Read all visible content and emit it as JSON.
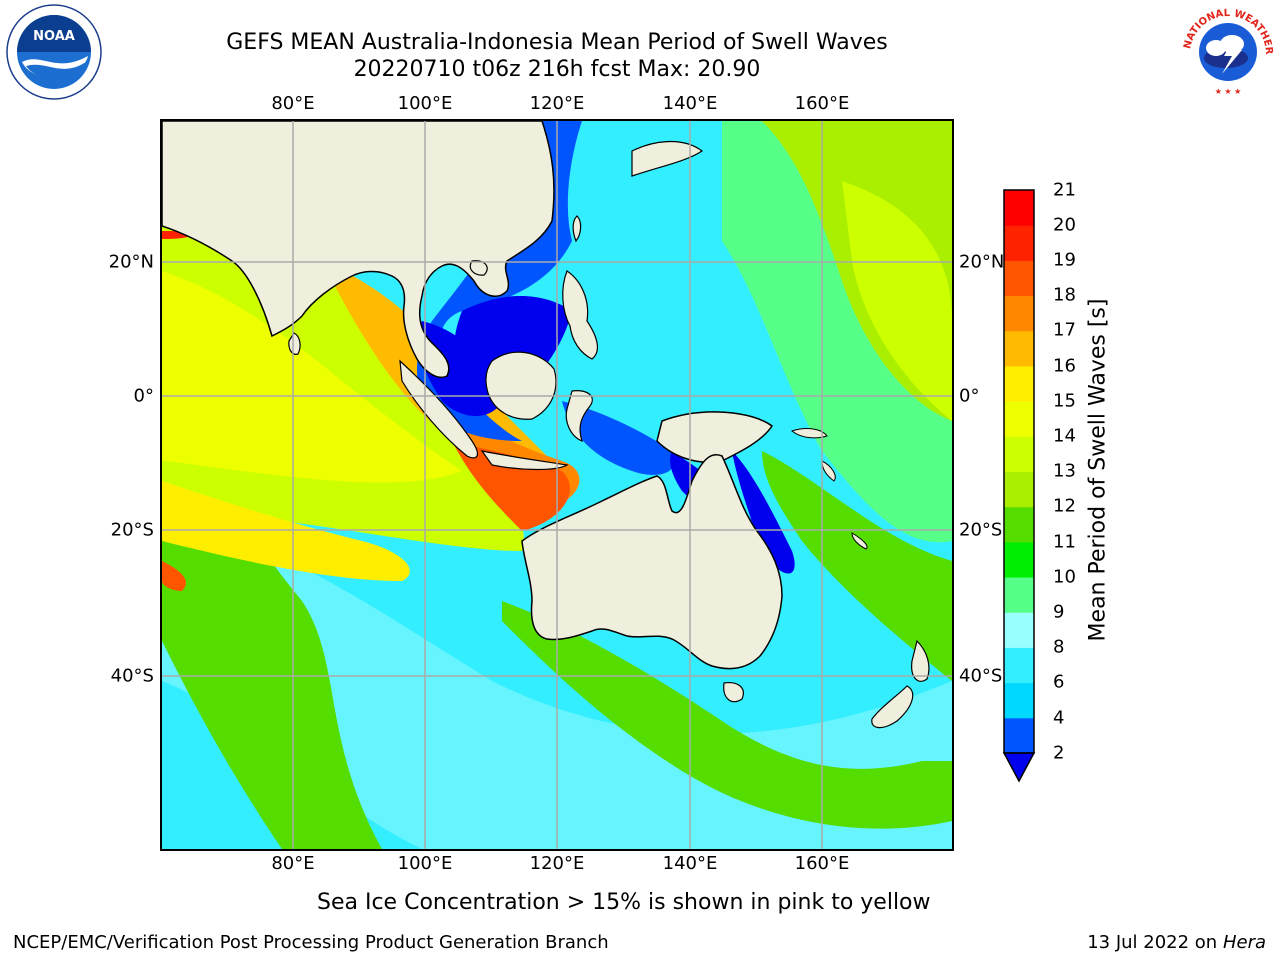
{
  "title": {
    "line1": "GEFS MEAN Australia-Indonesia Mean Period of Swell Waves",
    "line2": "20220710 t06z 216h fcst   Max: 20.90"
  },
  "logos": {
    "left": {
      "text": "NOAA",
      "ring_text": "NATIONAL OCEANIC AND ATMOSPHERIC ADMINISTRATION · U.S. DEPARTMENT OF COMMERCE"
    },
    "right": {
      "ring_text": "NATIONAL WEATHER SERVICE"
    }
  },
  "map": {
    "lon_ticks_top": [
      "80°E",
      "100°E",
      "120°E",
      "140°E",
      "160°E"
    ],
    "lon_ticks_bottom": [
      "80°E",
      "100°E",
      "120°E",
      "140°E",
      "160°E"
    ],
    "lat_ticks_left": [
      "20°N",
      "0°",
      "20°S",
      "40°S"
    ],
    "lat_ticks_right": [
      "20°N",
      "0°",
      "20°S",
      "40°S"
    ],
    "land_color": "#f0eedc",
    "grid_color": "#aaaaaa"
  },
  "colorbar": {
    "title": "Mean Period of Swell Waves [s]",
    "labels": [
      "2",
      "4",
      "6",
      "8",
      "9",
      "10",
      "11",
      "12",
      "13",
      "14",
      "15",
      "16",
      "17",
      "18",
      "19",
      "20",
      "21"
    ],
    "colors": [
      "#0055ff",
      "#00d8ff",
      "#33eeff",
      "#99ffff",
      "#55ff88",
      "#00ee00",
      "#55dd00",
      "#aaee00",
      "#ccff00",
      "#eeff00",
      "#ffee00",
      "#ffbb00",
      "#ff8800",
      "#ff5500",
      "#ff2200",
      "#ff0000"
    ],
    "under_color": "#0000ee"
  },
  "note": "Sea Ice Concentration > 15% is shown in pink to yellow",
  "footer": {
    "left": "NCEP/EMC/Verification Post Processing Product Generation Branch",
    "right_date": "13 Jul 2022 on ",
    "right_host": "Hera"
  }
}
